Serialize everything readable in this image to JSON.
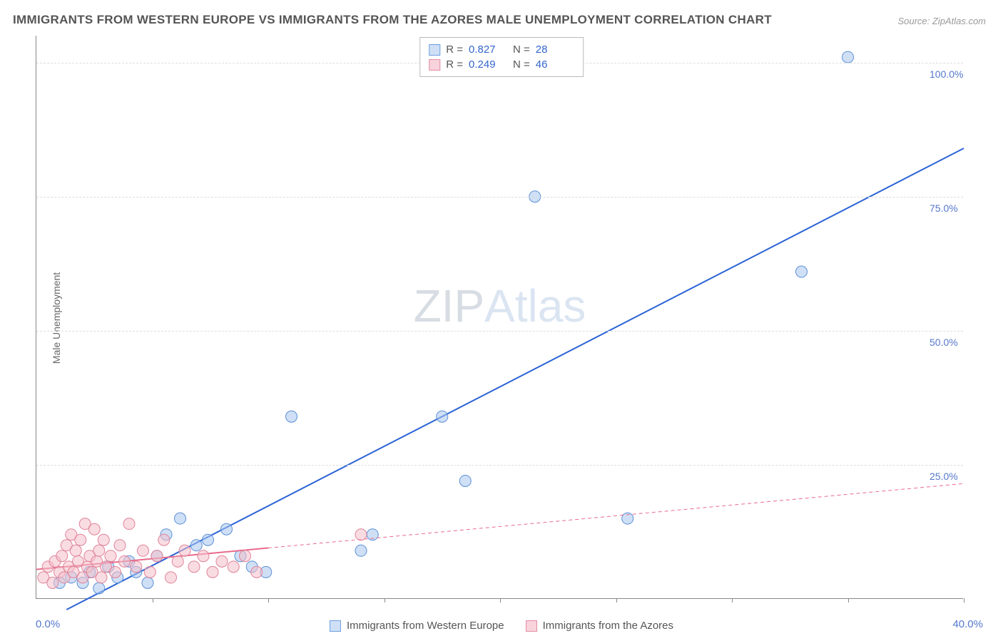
{
  "title": "IMMIGRANTS FROM WESTERN EUROPE VS IMMIGRANTS FROM THE AZORES MALE UNEMPLOYMENT CORRELATION CHART",
  "source": "Source: ZipAtlas.com",
  "watermark_a": "ZIP",
  "watermark_b": "Atlas",
  "axis": {
    "y_title": "Male Unemployment",
    "x_origin": "0.0%",
    "x_max": "40.0%",
    "y_ticks": [
      {
        "value": 25,
        "label": "25.0%"
      },
      {
        "value": 50,
        "label": "50.0%"
      },
      {
        "value": 75,
        "label": "75.0%"
      },
      {
        "value": 100,
        "label": "100.0%"
      }
    ],
    "xlim": [
      0,
      40
    ],
    "ylim": [
      0,
      105
    ],
    "x_ticks_minor": [
      5,
      10,
      15,
      20,
      25,
      30,
      35,
      40
    ]
  },
  "legend_top": {
    "rows": [
      {
        "swatch_fill": "#cfe0f6",
        "swatch_border": "#6f9fe0",
        "r_label": "R =",
        "r_value": "0.827",
        "n_label": "N =",
        "n_value": "28"
      },
      {
        "swatch_fill": "#f8d3dc",
        "swatch_border": "#e28fa4",
        "r_label": "R =",
        "r_value": "0.249",
        "n_label": "N =",
        "n_value": "46"
      }
    ]
  },
  "legend_bottom": {
    "items": [
      {
        "swatch_fill": "#cfe0f6",
        "swatch_border": "#6f9fe0",
        "label": "Immigrants from Western Europe"
      },
      {
        "swatch_fill": "#f8d3dc",
        "swatch_border": "#e28fa4",
        "label": "Immigrants from the Azores"
      }
    ]
  },
  "chart": {
    "type": "scatter",
    "background_color": "#ffffff",
    "grid_color": "#dddddd",
    "marker_radius": 8,
    "marker_opacity": 0.55,
    "series": [
      {
        "name": "western_europe",
        "fill": "#a7c6ee",
        "stroke": "#5c8fd6",
        "trend": {
          "x1": 1.3,
          "y1": -2,
          "x2": 40,
          "y2": 84,
          "color": "#2b63d6",
          "width": 2,
          "dash": "none"
        },
        "points": [
          [
            1.0,
            3
          ],
          [
            1.5,
            4
          ],
          [
            2.0,
            3
          ],
          [
            2.3,
            5
          ],
          [
            2.7,
            2
          ],
          [
            3.1,
            6
          ],
          [
            3.5,
            4
          ],
          [
            4.0,
            7
          ],
          [
            4.3,
            5
          ],
          [
            4.8,
            3
          ],
          [
            5.2,
            8
          ],
          [
            5.6,
            12
          ],
          [
            6.2,
            15
          ],
          [
            6.9,
            10
          ],
          [
            7.4,
            11
          ],
          [
            8.2,
            13
          ],
          [
            8.8,
            8
          ],
          [
            9.3,
            6
          ],
          [
            9.9,
            5
          ],
          [
            11.0,
            34
          ],
          [
            14.0,
            9
          ],
          [
            14.5,
            12
          ],
          [
            17.5,
            34
          ],
          [
            18.5,
            22
          ],
          [
            21.5,
            75
          ],
          [
            25.5,
            15
          ],
          [
            33.0,
            61
          ],
          [
            35.0,
            101
          ]
        ]
      },
      {
        "name": "azores",
        "fill": "#f4bfca",
        "stroke": "#e08298",
        "trend_solid": {
          "x1": 0,
          "y1": 5.5,
          "x2": 10,
          "y2": 9.5,
          "color": "#e86b8b",
          "width": 2
        },
        "trend_dash": {
          "x1": 10,
          "y1": 9.5,
          "x2": 40,
          "y2": 21.5,
          "color": "#e86b8b",
          "width": 1,
          "dash": "5,4"
        },
        "points": [
          [
            0.3,
            4
          ],
          [
            0.5,
            6
          ],
          [
            0.7,
            3
          ],
          [
            0.8,
            7
          ],
          [
            1.0,
            5
          ],
          [
            1.1,
            8
          ],
          [
            1.2,
            4
          ],
          [
            1.3,
            10
          ],
          [
            1.4,
            6
          ],
          [
            1.5,
            12
          ],
          [
            1.6,
            5
          ],
          [
            1.7,
            9
          ],
          [
            1.8,
            7
          ],
          [
            1.9,
            11
          ],
          [
            2.0,
            4
          ],
          [
            2.1,
            14
          ],
          [
            2.2,
            6
          ],
          [
            2.3,
            8
          ],
          [
            2.4,
            5
          ],
          [
            2.5,
            13
          ],
          [
            2.6,
            7
          ],
          [
            2.7,
            9
          ],
          [
            2.8,
            4
          ],
          [
            2.9,
            11
          ],
          [
            3.0,
            6
          ],
          [
            3.2,
            8
          ],
          [
            3.4,
            5
          ],
          [
            3.6,
            10
          ],
          [
            3.8,
            7
          ],
          [
            4.0,
            14
          ],
          [
            4.3,
            6
          ],
          [
            4.6,
            9
          ],
          [
            4.9,
            5
          ],
          [
            5.2,
            8
          ],
          [
            5.5,
            11
          ],
          [
            5.8,
            4
          ],
          [
            6.1,
            7
          ],
          [
            6.4,
            9
          ],
          [
            6.8,
            6
          ],
          [
            7.2,
            8
          ],
          [
            7.6,
            5
          ],
          [
            8.0,
            7
          ],
          [
            8.5,
            6
          ],
          [
            9.0,
            8
          ],
          [
            9.5,
            5
          ],
          [
            14.0,
            12
          ]
        ]
      }
    ]
  },
  "colors": {
    "title": "#555555",
    "source": "#999999",
    "axis_label": "#5577cc",
    "axis_title": "#666666"
  }
}
